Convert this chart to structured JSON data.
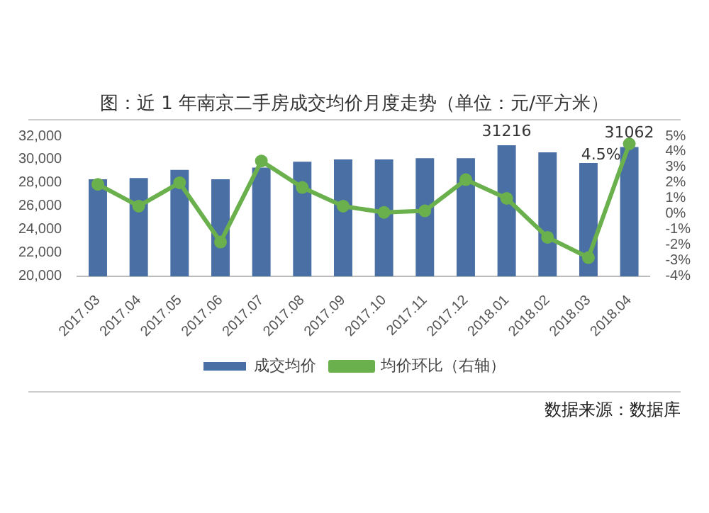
{
  "chart_data": {
    "type": "bar",
    "title": "图：近 1 年南京二手房成交均价月度走势（单位：元/平方米）",
    "categories": [
      "2017.03",
      "2017.04",
      "2017.05",
      "2017.06",
      "2017.07",
      "2017.08",
      "2017.09",
      "2017.10",
      "2017.11",
      "2017.12",
      "2018.01",
      "2018.02",
      "2018.03",
      "2018.04"
    ],
    "series": [
      {
        "name": "成交均价",
        "color": "#4a6fa5",
        "values": [
          28300,
          28400,
          29100,
          28300,
          29300,
          29800,
          30000,
          30000,
          30100,
          30100,
          31216,
          30600,
          29700,
          31062
        ],
        "value_labels": [
          null,
          null,
          null,
          null,
          null,
          null,
          null,
          null,
          null,
          null,
          "31216",
          null,
          null,
          "31062"
        ]
      },
      {
        "name": "均价环比（右轴）",
        "type": "line",
        "axis": "y2",
        "color": "#6ab04c",
        "values": [
          1.9,
          0.5,
          2.0,
          -1.8,
          3.4,
          1.7,
          0.5,
          0.1,
          0.2,
          2.2,
          1.0,
          -1.5,
          -2.8,
          4.5
        ],
        "value_labels": [
          null,
          null,
          null,
          null,
          null,
          null,
          null,
          null,
          null,
          null,
          null,
          null,
          null,
          "4.5%"
        ]
      }
    ],
    "ylim": [
      20000,
      32000
    ],
    "yticks": [
      {
        "value": 20000,
        "label": "20,000"
      },
      {
        "value": 22000,
        "label": "22,000"
      },
      {
        "value": 24000,
        "label": "24,000"
      },
      {
        "value": 26000,
        "label": "26,000"
      },
      {
        "value": 28000,
        "label": "28,000"
      },
      {
        "value": 30000,
        "label": "30,000"
      },
      {
        "value": 32000,
        "label": "32,000"
      }
    ],
    "y2lim": [
      -4,
      5
    ],
    "y2ticks": [
      {
        "value": -4,
        "label": "-4%"
      },
      {
        "value": -3,
        "label": "-3%"
      },
      {
        "value": -2,
        "label": "-2%"
      },
      {
        "value": -1,
        "label": "-1%"
      },
      {
        "value": 0,
        "label": "0%"
      },
      {
        "value": 1,
        "label": "1%"
      },
      {
        "value": 2,
        "label": "2%"
      },
      {
        "value": 3,
        "label": "3%"
      },
      {
        "value": 4,
        "label": "4%"
      },
      {
        "value": 5,
        "label": "5%"
      }
    ],
    "grid": false,
    "legend": "bottom",
    "marker": "circle",
    "annotations": [
      "数据来源：数据库"
    ]
  }
}
